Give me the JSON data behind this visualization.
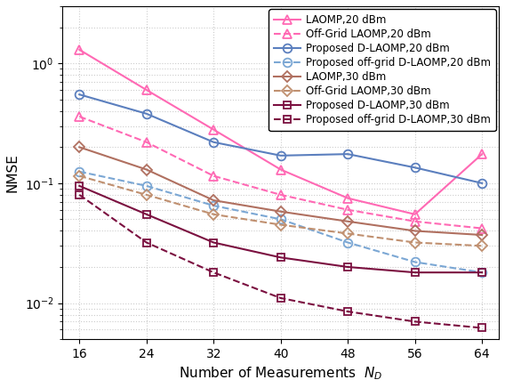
{
  "x": [
    16,
    24,
    32,
    40,
    48,
    56,
    64
  ],
  "series": [
    {
      "label": "LAOMP,20 dBm",
      "color": "#FF69B4",
      "linestyle": "-",
      "marker": "^",
      "markersize": 7,
      "linewidth": 1.5,
      "markerfacecolor": "none",
      "values": [
        1.3,
        0.6,
        0.28,
        0.13,
        0.075,
        0.055,
        0.175
      ]
    },
    {
      "label": "Off-Grid LAOMP,20 dBm",
      "color": "#FF69B4",
      "linestyle": "--",
      "marker": "^",
      "markersize": 7,
      "linewidth": 1.5,
      "markerfacecolor": "none",
      "values": [
        0.36,
        0.22,
        0.115,
        0.08,
        0.06,
        0.048,
        0.042
      ]
    },
    {
      "label": "Proposed D-LAOMP,20 dBm",
      "color": "#5B7FBE",
      "linestyle": "-",
      "marker": "o",
      "markersize": 7,
      "linewidth": 1.5,
      "markerfacecolor": "none",
      "values": [
        0.55,
        0.38,
        0.22,
        0.17,
        0.175,
        0.135,
        0.1
      ]
    },
    {
      "label": "Proposed off-grid D-LAOMP,20 dBm",
      "color": "#7BA7D4",
      "linestyle": "--",
      "marker": "o",
      "markersize": 7,
      "linewidth": 1.5,
      "markerfacecolor": "none",
      "values": [
        0.125,
        0.095,
        0.065,
        0.05,
        0.032,
        0.022,
        0.018
      ]
    },
    {
      "label": "LAOMP,30 dBm",
      "color": "#B07060",
      "linestyle": "-",
      "marker": "D",
      "markersize": 6,
      "linewidth": 1.5,
      "markerfacecolor": "none",
      "values": [
        0.2,
        0.13,
        0.072,
        0.058,
        0.048,
        0.04,
        0.037
      ]
    },
    {
      "label": "Off-Grid LAOMP,30 dBm",
      "color": "#C09070",
      "linestyle": "--",
      "marker": "D",
      "markersize": 6,
      "linewidth": 1.5,
      "markerfacecolor": "none",
      "values": [
        0.115,
        0.08,
        0.055,
        0.045,
        0.038,
        0.032,
        0.03
      ]
    },
    {
      "label": "Proposed D-LAOMP,30 dBm",
      "color": "#7B1040",
      "linestyle": "-",
      "marker": "s",
      "markersize": 6,
      "linewidth": 1.5,
      "markerfacecolor": "none",
      "values": [
        0.095,
        0.055,
        0.032,
        0.024,
        0.02,
        0.018,
        0.018
      ]
    },
    {
      "label": "Proposed off-grid D-LAOMP,30 dBm",
      "color": "#7B1040",
      "linestyle": "--",
      "marker": "s",
      "markersize": 6,
      "linewidth": 1.5,
      "markerfacecolor": "none",
      "values": [
        0.08,
        0.032,
        0.018,
        0.011,
        0.0085,
        0.007,
        0.0062
      ]
    }
  ],
  "xlabel": "Number of Measurements  $N_D$",
  "ylabel": "NMSE",
  "ylim": [
    0.005,
    3.0
  ],
  "xlim": [
    14,
    66
  ],
  "xticks": [
    16,
    24,
    32,
    40,
    48,
    56,
    64
  ],
  "grid_color": "#AAAAAA",
  "legend_fontsize": 8.5,
  "axis_fontsize": 11,
  "tick_fontsize": 10,
  "figure_facecolor": "#FFFFFF"
}
